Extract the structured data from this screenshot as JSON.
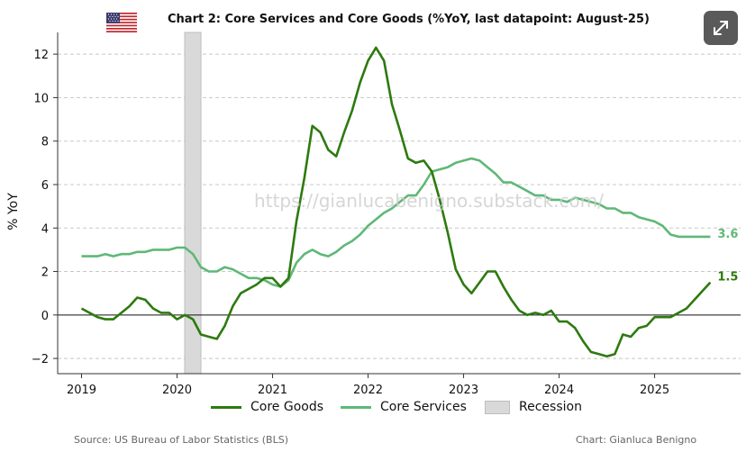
{
  "header": {
    "title": "Chart 2: Core Services and Core Goods (%YoY, last datapoint: August-25)",
    "flag_icon": "us-flag-icon",
    "expand_icon": "expand-arrows-icon"
  },
  "footer": {
    "source": "Source: US Bureau of Labor Statistics (BLS)",
    "credit": "Chart: Gianluca Benigno"
  },
  "watermark": "https://gianlucabenigno.substack.com/",
  "legend": {
    "goods": "Core Goods",
    "services": "Core Services",
    "recession": "Recession"
  },
  "colors": {
    "goods": "#2d7a0f",
    "services": "#5fb877",
    "recession": "#d9d9d9",
    "grid": "#c8c8c8"
  },
  "chart_data": {
    "type": "line",
    "title": "Chart 2: Core Services and Core Goods (%YoY, last datapoint: August-25)",
    "xlabel": "",
    "ylabel": "% YoY",
    "xlim": [
      2018.75,
      2025.9
    ],
    "ylim": [
      -2.7,
      13
    ],
    "x_ticks": [
      "2019",
      "2020",
      "2021",
      "2022",
      "2023",
      "2024",
      "2025"
    ],
    "y_ticks": [
      "−2",
      "0",
      "2",
      "4",
      "6",
      "8",
      "10",
      "12"
    ],
    "grid": "horizontal dashed",
    "legend_position": "bottom",
    "recession": {
      "start": 2020.08,
      "end": 2020.25,
      "label": "Recession"
    },
    "end_labels": {
      "services": "3.6",
      "goods": "1.5"
    },
    "series": [
      {
        "name": "Core Goods",
        "x": [
          2019.0,
          2019.083,
          2019.167,
          2019.25,
          2019.333,
          2019.417,
          2019.5,
          2019.583,
          2019.667,
          2019.75,
          2019.833,
          2019.917,
          2020.0,
          2020.083,
          2020.167,
          2020.25,
          2020.333,
          2020.417,
          2020.5,
          2020.583,
          2020.667,
          2020.75,
          2020.833,
          2020.917,
          2021.0,
          2021.083,
          2021.167,
          2021.25,
          2021.333,
          2021.417,
          2021.5,
          2021.583,
          2021.667,
          2021.75,
          2021.833,
          2021.917,
          2022.0,
          2022.083,
          2022.167,
          2022.25,
          2022.333,
          2022.417,
          2022.5,
          2022.583,
          2022.667,
          2022.75,
          2022.833,
          2022.917,
          2023.0,
          2023.083,
          2023.167,
          2023.25,
          2023.333,
          2023.417,
          2023.5,
          2023.583,
          2023.667,
          2023.75,
          2023.833,
          2023.917,
          2024.0,
          2024.083,
          2024.167,
          2024.25,
          2024.333,
          2024.417,
          2024.5,
          2024.583,
          2024.667,
          2024.75,
          2024.833,
          2024.917,
          2025.0,
          2025.083,
          2025.167,
          2025.25,
          2025.333,
          2025.417,
          2025.5,
          2025.583
        ],
        "values": [
          0.3,
          0.1,
          -0.1,
          -0.2,
          -0.2,
          0.1,
          0.4,
          0.8,
          0.7,
          0.3,
          0.1,
          0.1,
          -0.2,
          0.0,
          -0.2,
          -0.9,
          -1.0,
          -1.1,
          -0.5,
          0.4,
          1.0,
          1.2,
          1.4,
          1.7,
          1.7,
          1.3,
          1.7,
          4.3,
          6.3,
          8.7,
          8.4,
          7.6,
          7.3,
          8.4,
          9.4,
          10.7,
          11.7,
          12.3,
          11.7,
          9.7,
          8.5,
          7.2,
          7.0,
          7.1,
          6.6,
          5.3,
          3.8,
          2.1,
          1.4,
          1.0,
          1.5,
          2.0,
          2.0,
          1.3,
          0.7,
          0.2,
          0.0,
          0.1,
          0.0,
          0.2,
          -0.3,
          -0.3,
          -0.6,
          -1.2,
          -1.7,
          -1.8,
          -1.9,
          -1.8,
          -0.9,
          -1.0,
          -0.6,
          -0.5,
          -0.1,
          -0.1,
          -0.1,
          0.1,
          0.3,
          0.7,
          1.1,
          1.5
        ]
      },
      {
        "name": "Core Services",
        "x": [
          2019.0,
          2019.083,
          2019.167,
          2019.25,
          2019.333,
          2019.417,
          2019.5,
          2019.583,
          2019.667,
          2019.75,
          2019.833,
          2019.917,
          2020.0,
          2020.083,
          2020.167,
          2020.25,
          2020.333,
          2020.417,
          2020.5,
          2020.583,
          2020.667,
          2020.75,
          2020.833,
          2020.917,
          2021.0,
          2021.083,
          2021.167,
          2021.25,
          2021.333,
          2021.417,
          2021.5,
          2021.583,
          2021.667,
          2021.75,
          2021.833,
          2021.917,
          2022.0,
          2022.083,
          2022.167,
          2022.25,
          2022.333,
          2022.417,
          2022.5,
          2022.583,
          2022.667,
          2022.75,
          2022.833,
          2022.917,
          2023.0,
          2023.083,
          2023.167,
          2023.25,
          2023.333,
          2023.417,
          2023.5,
          2023.583,
          2023.667,
          2023.75,
          2023.833,
          2023.917,
          2024.0,
          2024.083,
          2024.167,
          2024.25,
          2024.333,
          2024.417,
          2024.5,
          2024.583,
          2024.667,
          2024.75,
          2024.833,
          2024.917,
          2025.0,
          2025.083,
          2025.167,
          2025.25,
          2025.333,
          2025.417,
          2025.5,
          2025.583
        ],
        "values": [
          2.7,
          2.7,
          2.7,
          2.8,
          2.7,
          2.8,
          2.8,
          2.9,
          2.9,
          3.0,
          3.0,
          3.0,
          3.1,
          3.1,
          2.8,
          2.2,
          2.0,
          2.0,
          2.2,
          2.1,
          1.9,
          1.7,
          1.7,
          1.6,
          1.4,
          1.3,
          1.6,
          2.4,
          2.8,
          3.0,
          2.8,
          2.7,
          2.9,
          3.2,
          3.4,
          3.7,
          4.1,
          4.4,
          4.7,
          4.9,
          5.2,
          5.5,
          5.5,
          6.0,
          6.6,
          6.7,
          6.8,
          7.0,
          7.1,
          7.2,
          7.1,
          6.8,
          6.5,
          6.1,
          6.1,
          5.9,
          5.7,
          5.5,
          5.5,
          5.3,
          5.3,
          5.2,
          5.4,
          5.3,
          5.2,
          5.1,
          4.9,
          4.9,
          4.7,
          4.7,
          4.5,
          4.4,
          4.3,
          4.1,
          3.7,
          3.6,
          3.6,
          3.6,
          3.6,
          3.6
        ]
      }
    ]
  }
}
